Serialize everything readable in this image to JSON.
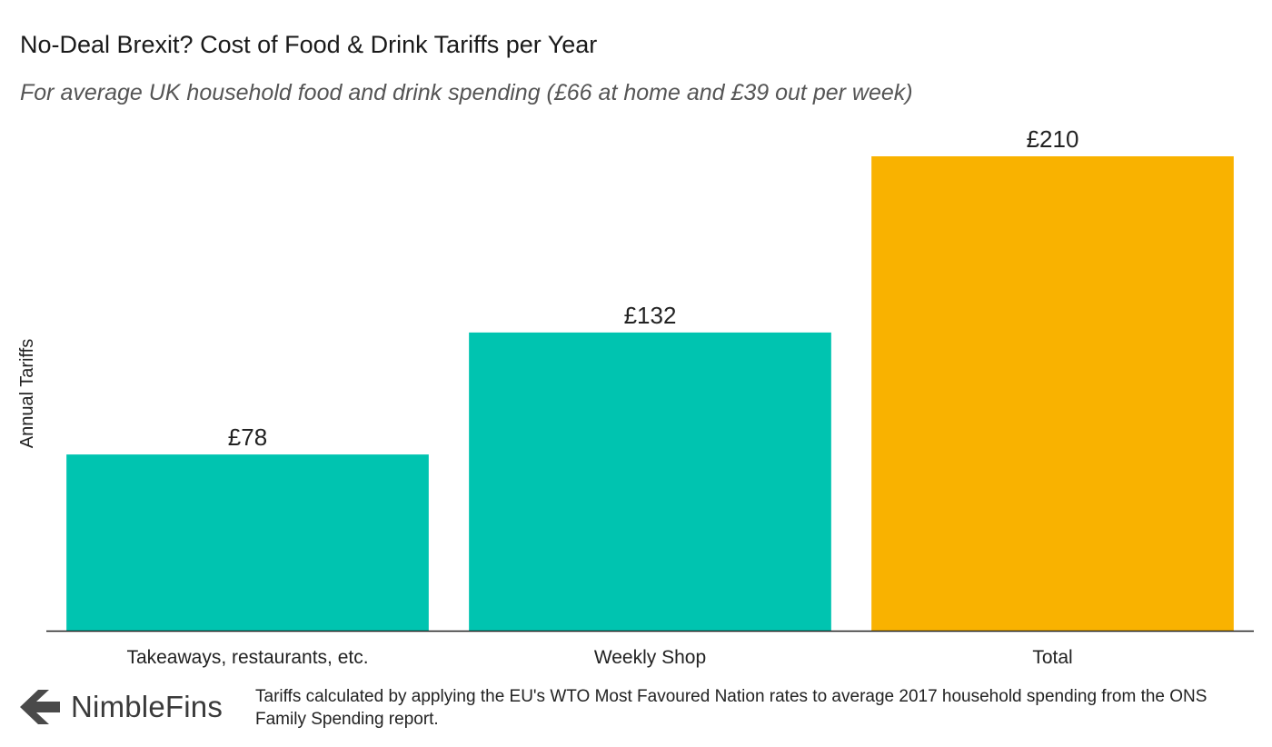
{
  "header": {
    "title": "No-Deal Brexit? Cost of Food & Drink Tariffs per Year",
    "subtitle": "For average UK household food and drink spending (£66 at home and £39 out per week)"
  },
  "chart_data": {
    "type": "bar",
    "title": "No-Deal Brexit? Cost of Food & Drink Tariffs per Year",
    "subtitle": "For average UK household food and drink spending (£66 at home and £39 out per week)",
    "xlabel": "",
    "ylabel": "Annual Tariffs",
    "categories": [
      "Takeaways, restaurants, etc.",
      "Weekly Shop",
      "Total"
    ],
    "values": [
      78,
      132,
      210
    ],
    "data_labels": [
      "£78",
      "£132",
      "£210"
    ],
    "colors": [
      "#00c4b0",
      "#00c4b0",
      "#f9b200"
    ],
    "ylim": [
      0,
      210
    ],
    "grid": false,
    "legend": "none"
  },
  "footer": {
    "brand": "NimbleFins",
    "logo_icon": "chevron-left-icon",
    "note": "Tariffs calculated by applying the EU's WTO Most Favoured Nation rates to average 2017 household spending from the ONS Family Spending report."
  },
  "colors": {
    "teal": "#00c4b0",
    "gold": "#f9b200",
    "axis": "#222222",
    "logo": "#4a4a4a"
  }
}
